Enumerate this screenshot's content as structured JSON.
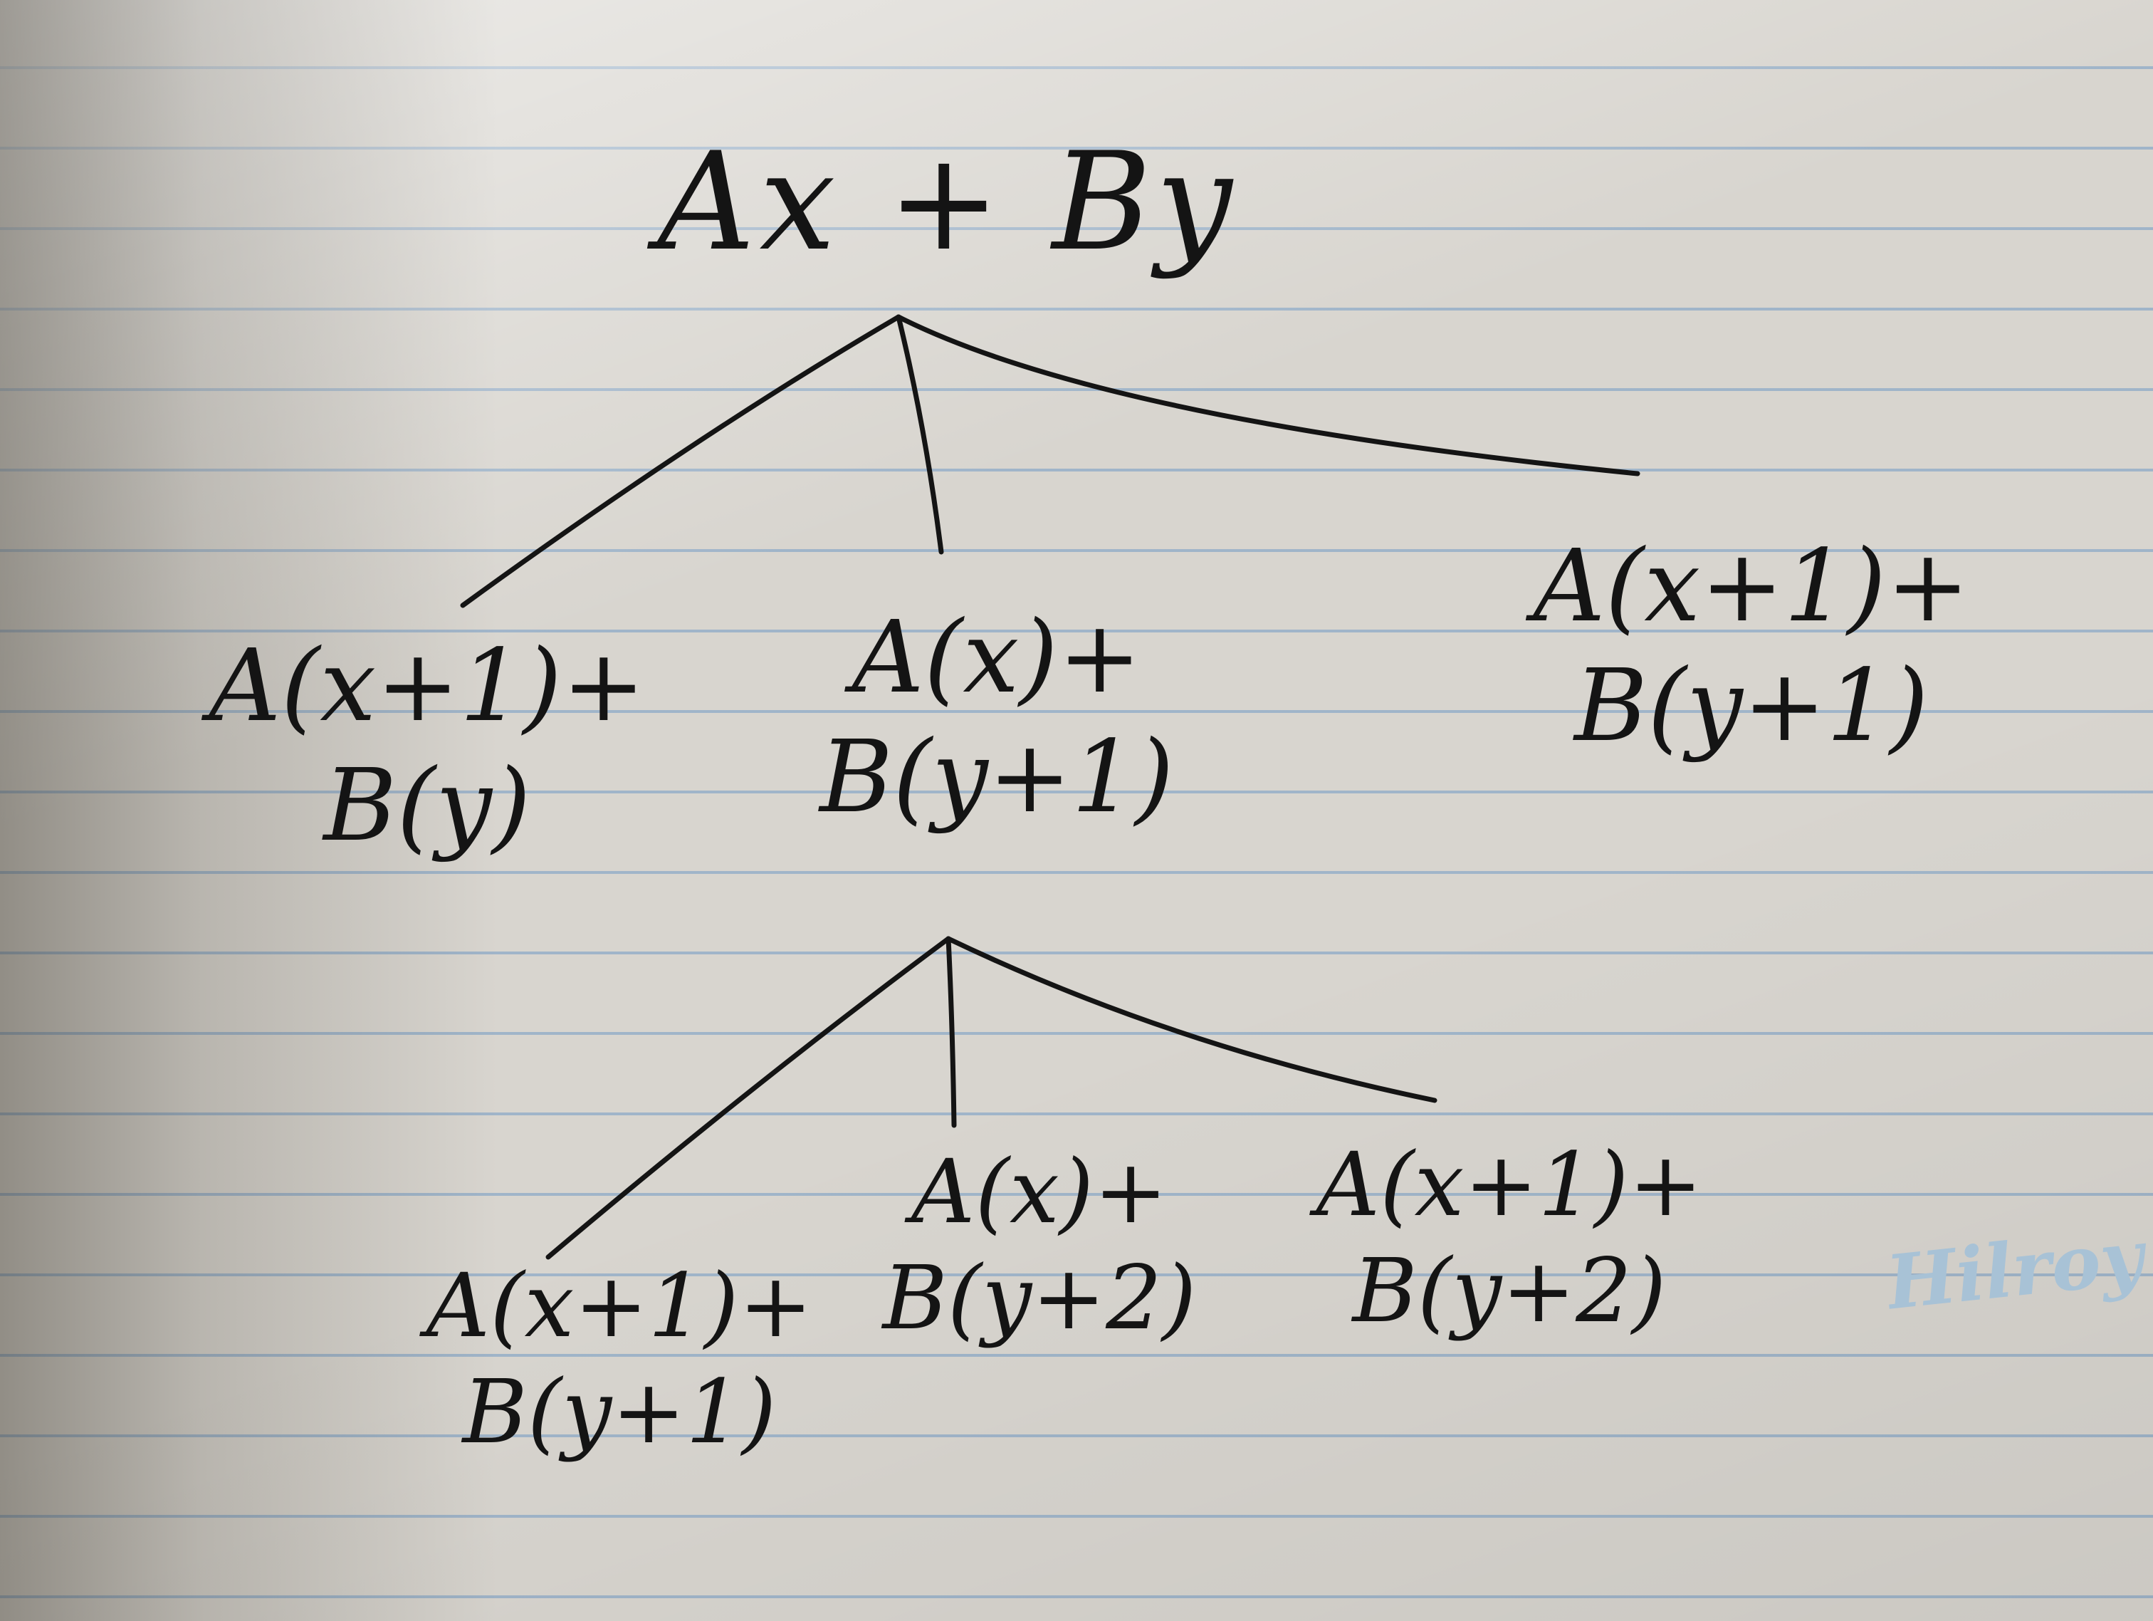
{
  "tree": {
    "root": "Ax + By",
    "level1": [
      {
        "line1": "A(x+1)+",
        "line2": "B(y)"
      },
      {
        "line1": "A(x)+",
        "line2": "B(y+1)"
      },
      {
        "line1": "A(x+1)+",
        "line2": "B(y+1)"
      }
    ],
    "level2": [
      {
        "line1": "A(x+1)+",
        "line2": "B(y+1)"
      },
      {
        "line1": "A(x)+",
        "line2": "B(y+2)"
      },
      {
        "line1": "A(x+1)+",
        "line2": "B(y+2)"
      }
    ]
  },
  "watermark": "Hilroy",
  "colors": {
    "ink": "#141414",
    "ruled_line": "#96afc8",
    "paper": "#d8d5cf",
    "watermark": "#a8c2d6"
  }
}
